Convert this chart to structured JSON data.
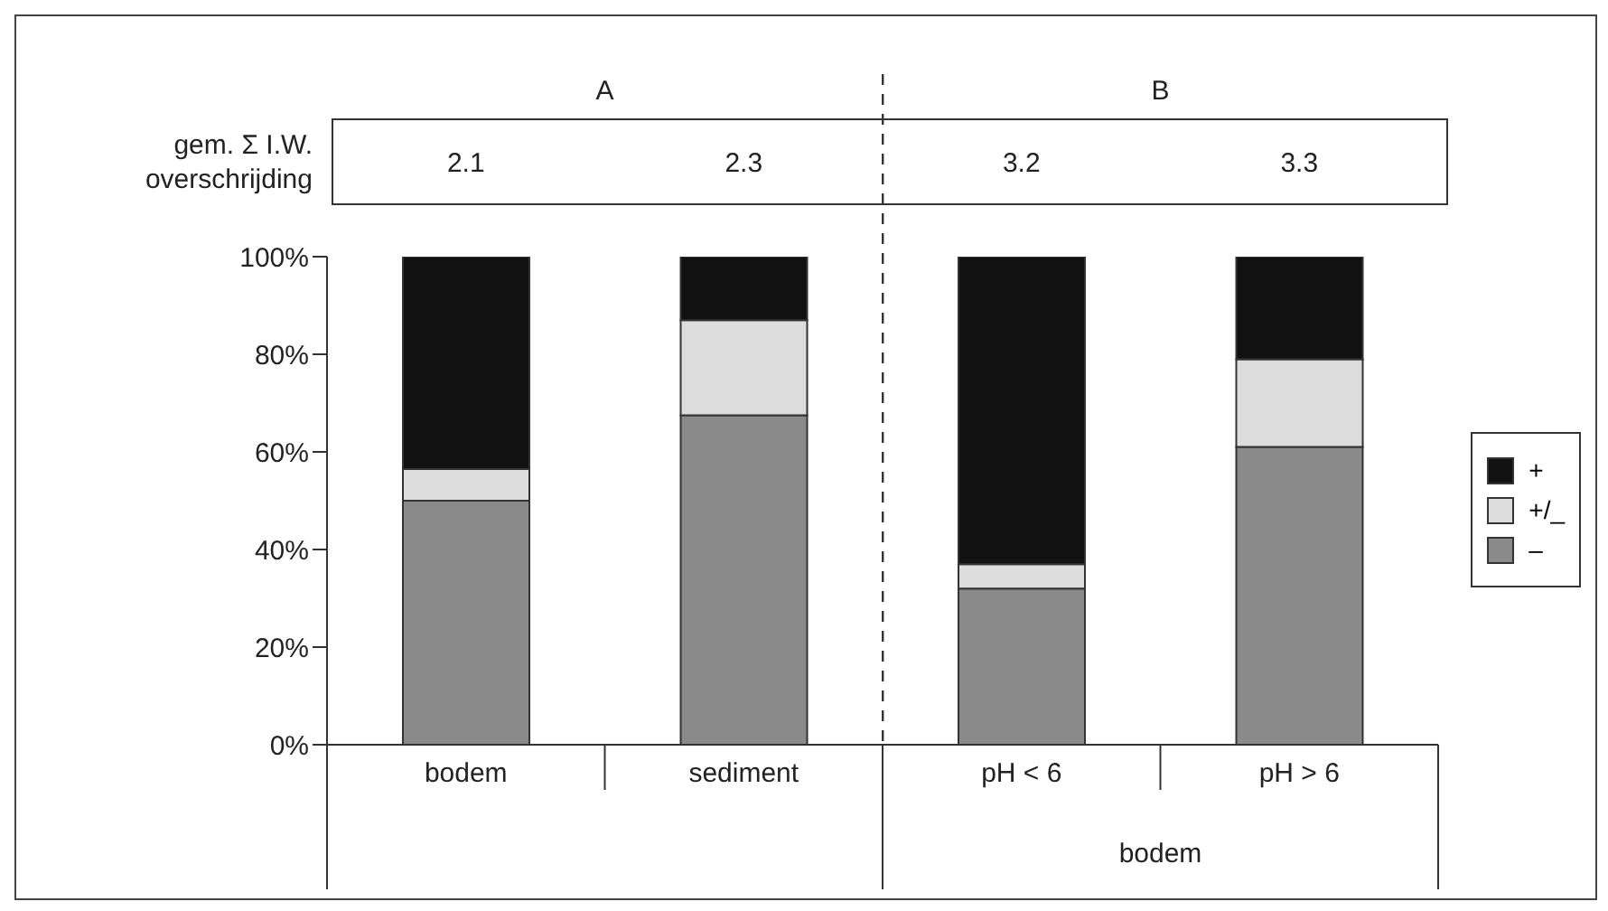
{
  "chart_data": {
    "type": "bar",
    "stacked": true,
    "categories": [
      "bodem",
      "sediment",
      "pH < 6",
      "pH > 6"
    ],
    "series": [
      {
        "name": "–",
        "color": "#8a8a8a",
        "values": [
          50,
          67.5,
          32,
          61
        ]
      },
      {
        "name": "+/_",
        "color": "#dcdcdc",
        "values": [
          6.5,
          19.5,
          5,
          18
        ]
      },
      {
        "name": "+",
        "color": "#111111",
        "values": [
          43.5,
          13,
          63,
          21
        ]
      }
    ],
    "ylim": [
      0,
      100
    ],
    "yticks": [
      {
        "value": 0,
        "label": "0%"
      },
      {
        "value": 20,
        "label": "20%"
      },
      {
        "value": 40,
        "label": "40%"
      },
      {
        "value": 60,
        "label": "60%"
      },
      {
        "value": 80,
        "label": "80%"
      },
      {
        "value": 100,
        "label": "100%"
      }
    ],
    "grid": false,
    "legend": "right",
    "annotations": [
      "A",
      "B",
      "gem. Σ I.W.",
      "overschrijding",
      "2.1",
      "2.3",
      "3.2",
      "3.3",
      "bodem"
    ]
  }
}
